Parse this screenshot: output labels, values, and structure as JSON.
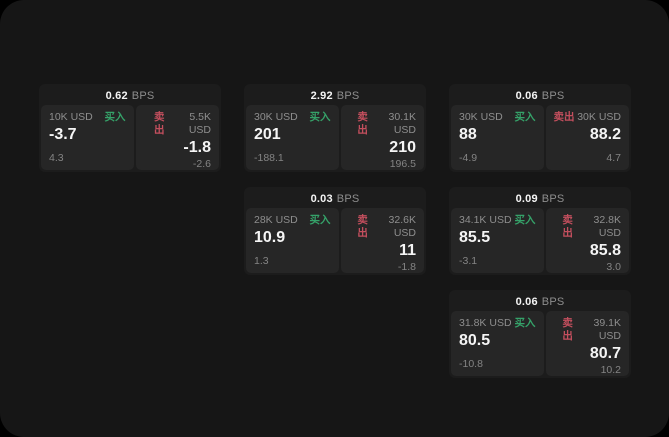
{
  "labels": {
    "bps": "BPS",
    "buy": "买入",
    "sell": "卖出"
  },
  "colors": {
    "page-bg": "#161616",
    "card-bg": "#1c1c1c",
    "panel-bg": "#262626",
    "buy-green": "#35a269",
    "sell-red": "#c44f5e",
    "muted-gray": "#8e8e8e",
    "dim-gray": "#848484"
  },
  "cards": [
    {
      "bps": "0.62",
      "buy": {
        "size": "10K USD",
        "price": "-3.7",
        "sub": "4.3"
      },
      "sell": {
        "size": "5.5K USD",
        "price": "-1.8",
        "sub": "-2.6"
      }
    },
    {
      "bps": "2.92",
      "buy": {
        "size": "30K USD",
        "price": "201",
        "sub": "-188.1"
      },
      "sell": {
        "size": "30.1K USD",
        "price": "210",
        "sub": "196.5"
      }
    },
    {
      "bps": "0.06",
      "buy": {
        "size": "30K USD",
        "price": "88",
        "sub": "-4.9"
      },
      "sell": {
        "size": "30K USD",
        "price": "88.2",
        "sub": "4.7"
      }
    },
    {
      "bps": "0.03",
      "buy": {
        "size": "28K USD",
        "price": "10.9",
        "sub": "1.3"
      },
      "sell": {
        "size": "32.6K USD",
        "price": "11",
        "sub": "-1.8"
      }
    },
    {
      "bps": "0.09",
      "buy": {
        "size": "34.1K USD",
        "price": "85.5",
        "sub": "-3.1"
      },
      "sell": {
        "size": "32.8K USD",
        "price": "85.8",
        "sub": "3.0"
      }
    },
    {
      "bps": "0.06",
      "buy": {
        "size": "31.8K USD",
        "price": "80.5",
        "sub": "-10.8"
      },
      "sell": {
        "size": "39.1K USD",
        "price": "80.7",
        "sub": "10.2"
      }
    }
  ]
}
